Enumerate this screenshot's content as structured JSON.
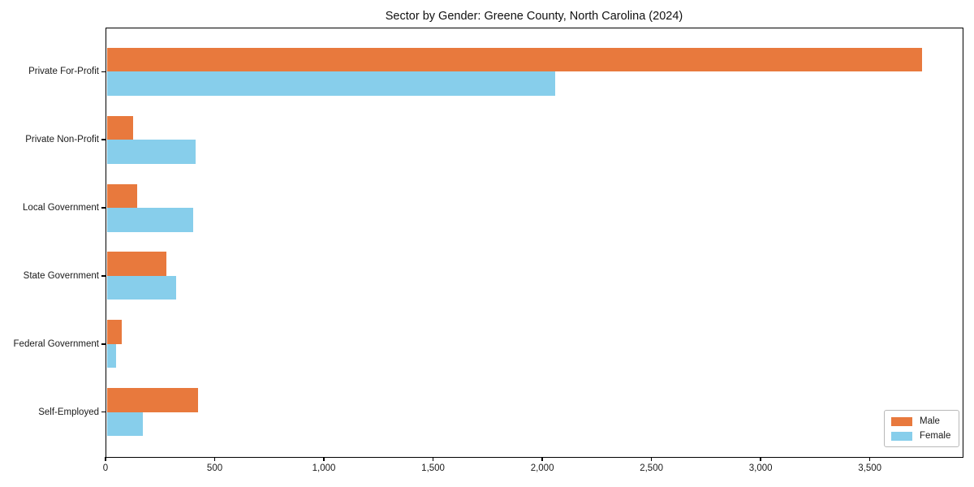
{
  "chart_data": {
    "type": "bar",
    "orientation": "horizontal",
    "title": "Sector by Gender: Greene County, North Carolina (2024)",
    "xlabel": "",
    "ylabel": "",
    "categories": [
      "Private For-Profit",
      "Private Non-Profit",
      "Local Government",
      "State Government",
      "Federal Government",
      "Self-Employed"
    ],
    "series": [
      {
        "name": "Male",
        "color": "#e8793d",
        "values": [
          3740,
          128,
          144,
          280,
          73,
          423
        ]
      },
      {
        "name": "Female",
        "color": "#87ceeb",
        "values": [
          2060,
          412,
          402,
          322,
          47,
          171
        ]
      }
    ],
    "xlim": [
      0,
      3925
    ],
    "xticks": [
      0,
      500,
      1000,
      1500,
      2000,
      2500,
      3000,
      3500
    ],
    "xtick_labels": [
      "0",
      "500",
      "1,000",
      "1,500",
      "2,000",
      "2,500",
      "3,000",
      "3,500"
    ],
    "grid": false,
    "legend": {
      "position": "lower right",
      "entries": [
        "Male",
        "Female"
      ]
    }
  },
  "colors": {
    "male": "#e8793d",
    "female": "#87ceeb",
    "axis": "#000000",
    "background": "#ffffff"
  }
}
